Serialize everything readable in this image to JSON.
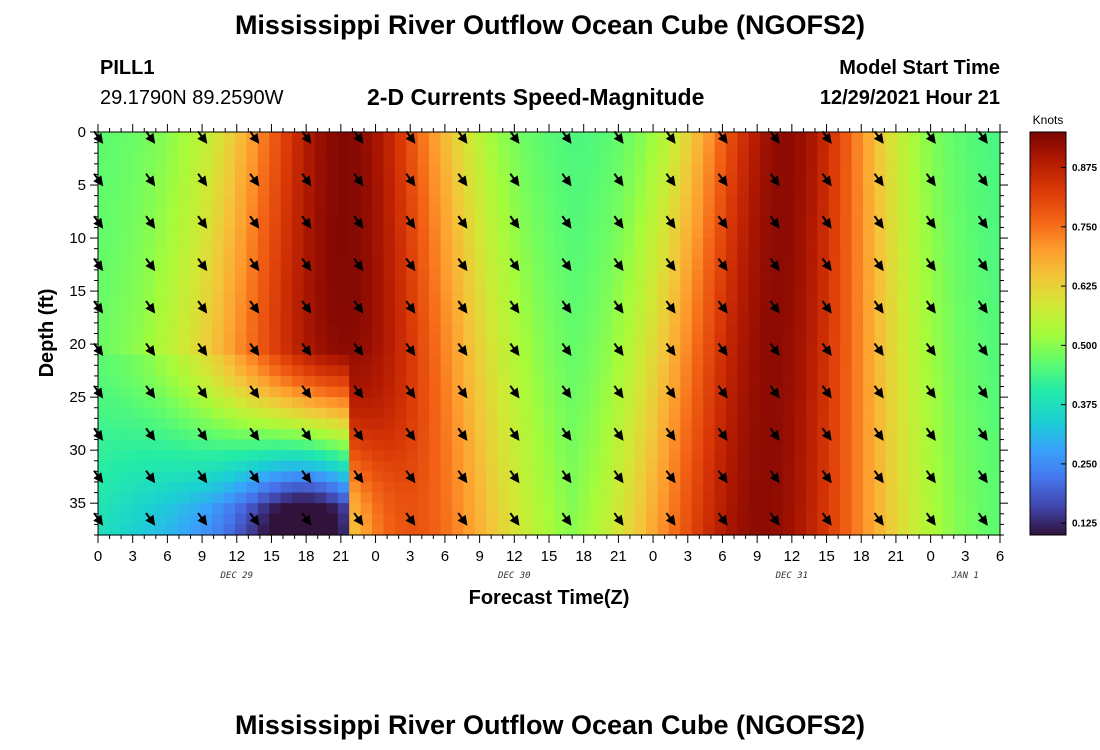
{
  "header": {
    "title": "Mississippi River Outflow Ocean Cube (NGOFS2)",
    "station": "PILL1",
    "coords": "29.1790N  89.2590W",
    "subtitle": "2-D Currents Speed-Magnitude",
    "model_start_label": "Model Start Time",
    "model_start_value": "12/29/2021 Hour 21"
  },
  "footer": {
    "title": "Mississippi River Outflow Ocean Cube (NGOFS2)"
  },
  "chart_data": {
    "type": "heatmap",
    "xlabel": "Forecast Time(Z)",
    "ylabel": "Depth (ft)",
    "x_tick_labels": [
      "0",
      "3",
      "6",
      "9",
      "12",
      "15",
      "18",
      "21",
      "0",
      "3",
      "6",
      "9",
      "12",
      "15",
      "18",
      "21",
      "0",
      "3",
      "6",
      "9",
      "12",
      "15",
      "18",
      "21",
      "0",
      "3",
      "6"
    ],
    "x_range_hours": [
      0,
      78
    ],
    "date_labels": [
      {
        "label": "DEC 29",
        "hour": 12
      },
      {
        "label": "DEC 30",
        "hour": 36
      },
      {
        "label": "DEC 31",
        "hour": 60
      },
      {
        "label": "JAN 1",
        "hour": 75
      }
    ],
    "y_ticks": [
      0,
      5,
      10,
      15,
      20,
      25,
      30,
      35
    ],
    "y_range_ft": [
      0,
      38
    ],
    "y_inverted": true,
    "colorbar": {
      "title": "Knots",
      "range": [
        0.1,
        0.95
      ],
      "ticks": [
        "0.125",
        "0.250",
        "0.375",
        "0.500",
        "0.625",
        "0.750",
        "0.875"
      ],
      "tick_values": [
        0.125,
        0.25,
        0.375,
        0.5,
        0.625,
        0.75,
        0.875
      ],
      "colormap": "turbo"
    },
    "vectors": {
      "x_hours": [
        0,
        4.5,
        9,
        13.5,
        18,
        22.5,
        27,
        31.5,
        36,
        40.5,
        45,
        49.5,
        54,
        58.5,
        63,
        67.5,
        72,
        76.5
      ],
      "depths_ft": [
        0.5,
        4.5,
        8.5,
        12.5,
        16.5,
        20.5,
        24.5,
        28.5,
        32.5,
        36.5
      ],
      "direction": "south-southeast"
    },
    "model": {
      "description": "Speed magnitude in knots vs forecast hour and depth",
      "peak_times_hours": [
        21.5,
        58.5
      ],
      "trough_times_hours": [
        8,
        45,
        78
      ],
      "surface_max_knots": 0.93,
      "surface_min_knots": 0.47,
      "deep_min_near_hour_18_knots": 0.12
    }
  }
}
